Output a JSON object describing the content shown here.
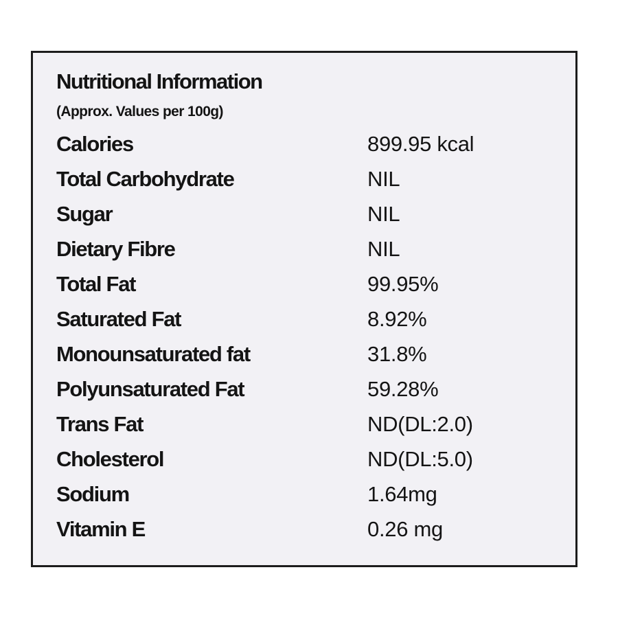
{
  "header": {
    "title": "Nutritional Information",
    "subtitle": "(Approx. Values per 100g)"
  },
  "table": {
    "rows": [
      [
        "Calories",
        "899.95 kcal"
      ],
      [
        "Total Carbohydrate",
        "NIL"
      ],
      [
        "Sugar",
        "NIL"
      ],
      [
        "Dietary Fibre",
        "NIL"
      ],
      [
        "Total Fat",
        "99.95%"
      ],
      [
        "Saturated Fat",
        "8.92%"
      ],
      [
        "Monounsaturated fat",
        "31.8%"
      ],
      [
        "Polyunsaturated Fat",
        "59.28%"
      ],
      [
        "Trans Fat",
        "ND(DL:2.0)"
      ],
      [
        "Cholesterol",
        "ND(DL:5.0)"
      ],
      [
        "Sodium",
        "1.64mg"
      ],
      [
        "Vitamin E",
        "0.26 mg"
      ]
    ]
  }
}
